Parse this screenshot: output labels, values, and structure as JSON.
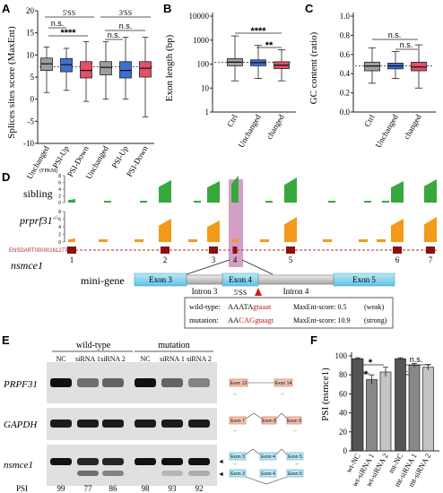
{
  "panels": {
    "A": {
      "label": "A",
      "ylabel": "Splices sites score (MaxEnt)",
      "yticks": [
        "-10",
        "-5",
        "0",
        "5",
        "10",
        "15",
        "20"
      ],
      "group_5ss": "5'SS",
      "group_3ss": "3'SS",
      "sig_1": "n.s.",
      "sig_2": "****",
      "sig_3": "n.s.",
      "sig_4": "n.s.",
      "categories": [
        "Unchanged",
        "PSI-Up",
        "PSI-Down",
        "Unchanged",
        "PSI-Up",
        "PSI-Down"
      ]
    },
    "B": {
      "label": "B",
      "ylabel": "Exon length (bp)",
      "yticks": [
        "1",
        "10",
        "100",
        "1000",
        "10000"
      ],
      "sig_1": "****",
      "sig_2": "**",
      "categories": [
        "Ctrl",
        "Unchanged",
        "changed"
      ]
    },
    "C": {
      "label": "C",
      "ylabel": "GC content (ratio)",
      "yticks": [
        "0.0",
        "0.2",
        "0.4",
        "0.6",
        "0.8",
        "1.0"
      ],
      "sig_1": "n.s.",
      "sig_2": "n.s.",
      "categories": [
        "Ctrl",
        "Unchanged",
        "changed"
      ]
    },
    "D": {
      "label": "D",
      "fpkm": "(FPKM)",
      "track_sibling": "sibling",
      "track_mutant": "prprf31",
      "track_mutant_sup": "-/-",
      "gene": "nsmce1",
      "transcript_id": "ENSDART00000161277.2",
      "ticks_top": [
        "8",
        "6",
        "4",
        "2",
        "0"
      ],
      "exon_numbers": [
        "1",
        "2",
        "3",
        "4",
        "5",
        "6",
        "7"
      ],
      "minigene_label": "mini-gene",
      "exon3": "Exon 3",
      "exon4": "Exon 4",
      "exon5": "Exon 5",
      "intron3": "Intron 3",
      "intron4": "Intron 4",
      "ss_label": "5'SS",
      "wt_label": "wild-type:",
      "wt_seq_a": "AAATA",
      "wt_seq_b": "gtaaat",
      "wt_score": "MaxEnt-score: 0.5",
      "wt_strength": "(weak)",
      "mut_label": "mutation:",
      "mut_seq_a": "AA",
      "mut_seq_b": "CAG",
      "mut_seq_c": "gtaagt",
      "mut_score": "MaxEnt-score: 10.9",
      "mut_strength": "(strong)"
    },
    "E": {
      "label": "E",
      "group_wt": "wild-type",
      "group_mut": "mutation",
      "lanes": [
        "NC",
        "siRNA 1",
        "siRNA 2",
        "NC",
        "siRNA 1",
        "siRNA 2"
      ],
      "row1": "PRPF31",
      "row2": "GAPDH",
      "row3": "nsmce1",
      "psi_label": "PSI",
      "psi_values": [
        "99",
        "77",
        "86",
        "98",
        "93",
        "92"
      ],
      "prpf31_exons": [
        "Exon 13",
        "Exon 14"
      ],
      "gapdh_exons": [
        "Exon 7",
        "Exon 8",
        "Exon 9"
      ],
      "nsmce1_top_exons": [
        "Exon 3",
        "Exon 4",
        "Exon 5"
      ],
      "nsmce1_bot_exons": [
        "Exon 3",
        "Exon 4",
        "Exon 5"
      ]
    },
    "F": {
      "label": "F",
      "ylabel": "PSI (nsmce1)",
      "yticks": [
        "0",
        "20",
        "40",
        "60",
        "80",
        "100"
      ],
      "sig_1": "*",
      "sig_2": "**",
      "sig_3": "n.s.",
      "sig_4": "n.s."
    }
  },
  "chart_data": [
    {
      "type": "box",
      "panel": "A",
      "ylabel": "Splices sites score (MaxEnt)",
      "ylim": [
        -10,
        20
      ],
      "categories": [
        "Unchanged",
        "PSI-Up",
        "PSI-Down",
        "Unchanged",
        "PSI-Up",
        "PSI-Down"
      ],
      "groups": [
        "5'SS",
        "5'SS",
        "5'SS",
        "3'SS",
        "3'SS",
        "3'SS"
      ],
      "colors": [
        "#9e9e9e",
        "#3f6fd1",
        "#e0506a",
        "#9e9e9e",
        "#3f6fd1",
        "#e0506a"
      ],
      "boxes": [
        {
          "min": 1.5,
          "q1": 6.5,
          "median": 8,
          "q3": 9.3,
          "max": 11.8
        },
        {
          "min": 2,
          "q1": 6.2,
          "median": 7.8,
          "q3": 9.2,
          "max": 11.5
        },
        {
          "min": -0.5,
          "q1": 4.8,
          "median": 6.5,
          "q3": 8.5,
          "max": 13
        },
        {
          "min": 0,
          "q1": 5.5,
          "median": 7.2,
          "q3": 8.5,
          "max": 13
        },
        {
          "min": 0,
          "q1": 4.8,
          "median": 6.5,
          "q3": 8.5,
          "max": 14
        },
        {
          "min": -4,
          "q1": 5,
          "median": 7,
          "q3": 8.5,
          "max": 14
        }
      ],
      "reference_line": 7.3
    },
    {
      "type": "box",
      "panel": "B",
      "ylabel": "Exon length (bp)",
      "yscale": "log",
      "ylim": [
        1,
        10000
      ],
      "categories": [
        "Ctrl",
        "Unchanged",
        "changed"
      ],
      "colors": [
        "#9e9e9e",
        "#3f6fd1",
        "#e0506a"
      ],
      "boxes": [
        {
          "min": 20,
          "q1": 85,
          "median": 120,
          "q3": 170,
          "max": 1500
        },
        {
          "min": 25,
          "q1": 85,
          "median": 115,
          "q3": 150,
          "max": 600
        },
        {
          "min": 20,
          "q1": 65,
          "median": 90,
          "q3": 125,
          "max": 400
        }
      ],
      "reference_line": 120
    },
    {
      "type": "box",
      "panel": "C",
      "ylabel": "GC content (ratio)",
      "ylim": [
        0,
        1
      ],
      "categories": [
        "Ctrl",
        "Unchanged",
        "changed"
      ],
      "colors": [
        "#9e9e9e",
        "#3f6fd1",
        "#e0506a"
      ],
      "boxes": [
        {
          "min": 0.3,
          "q1": 0.43,
          "median": 0.48,
          "q3": 0.52,
          "max": 0.67
        },
        {
          "min": 0.35,
          "q1": 0.45,
          "median": 0.48,
          "q3": 0.51,
          "max": 0.63
        },
        {
          "min": 0.25,
          "q1": 0.43,
          "median": 0.47,
          "q3": 0.52,
          "max": 0.7
        }
      ],
      "reference_line": 0.48
    },
    {
      "type": "bar",
      "panel": "F",
      "ylabel": "PSI (nsmce1)",
      "ylim": [
        0,
        100
      ],
      "categories": [
        "wt-NC",
        "wt-siRNA 1",
        "wt-siRNA 2",
        "mt-NC",
        "mt-siRNA 1",
        "mt-siRNA 2"
      ],
      "values": [
        97,
        75,
        83,
        97,
        90,
        88
      ],
      "errors": [
        1,
        5,
        5,
        1,
        2,
        3
      ],
      "colors": [
        "#555555",
        "#888888",
        "#c4c4c4",
        "#555555",
        "#888888",
        "#c4c4c4"
      ]
    }
  ]
}
